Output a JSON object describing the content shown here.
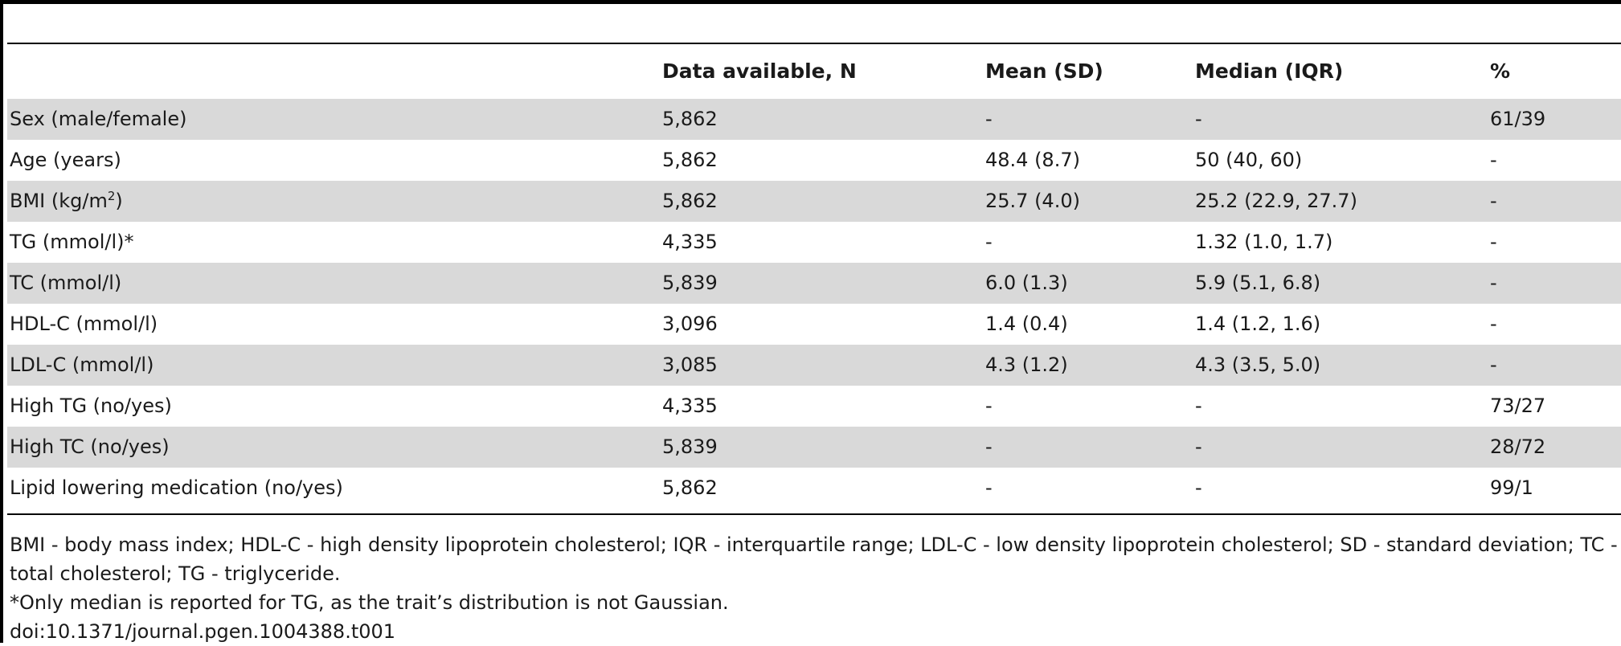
{
  "table": {
    "columns": [
      "",
      "Data available, N",
      "Mean (SD)",
      "Median (IQR)",
      "%"
    ],
    "rows": [
      {
        "variable": "Sex (male/female)",
        "unit_sup": "",
        "variable_suffix": "",
        "n": "5,862",
        "mean_sd": "-",
        "median_iqr": "-",
        "percent": "61/39"
      },
      {
        "variable": "Age (years)",
        "unit_sup": "",
        "variable_suffix": "",
        "n": "5,862",
        "mean_sd": "48.4 (8.7)",
        "median_iqr": "50 (40, 60)",
        "percent": "-"
      },
      {
        "variable": "BMI (kg/m",
        "unit_sup": "2",
        "variable_suffix": ")",
        "n": "5,862",
        "mean_sd": "25.7 (4.0)",
        "median_iqr": "25.2 (22.9, 27.7)",
        "percent": "-"
      },
      {
        "variable": "TG (mmol/l)*",
        "unit_sup": "",
        "variable_suffix": "",
        "n": "4,335",
        "mean_sd": "-",
        "median_iqr": "1.32 (1.0, 1.7)",
        "percent": "-"
      },
      {
        "variable": "TC (mmol/l)",
        "unit_sup": "",
        "variable_suffix": "",
        "n": "5,839",
        "mean_sd": "6.0 (1.3)",
        "median_iqr": "5.9 (5.1, 6.8)",
        "percent": "-"
      },
      {
        "variable": "HDL-C (mmol/l)",
        "unit_sup": "",
        "variable_suffix": "",
        "n": "3,096",
        "mean_sd": "1.4 (0.4)",
        "median_iqr": "1.4 (1.2, 1.6)",
        "percent": "-"
      },
      {
        "variable": "LDL-C (mmol/l)",
        "unit_sup": "",
        "variable_suffix": "",
        "n": "3,085",
        "mean_sd": "4.3 (1.2)",
        "median_iqr": "4.3 (3.5, 5.0)",
        "percent": "-"
      },
      {
        "variable": "High TG (no/yes)",
        "unit_sup": "",
        "variable_suffix": "",
        "n": "4,335",
        "mean_sd": "-",
        "median_iqr": "-",
        "percent": "73/27"
      },
      {
        "variable": "High TC (no/yes)",
        "unit_sup": "",
        "variable_suffix": "",
        "n": "5,839",
        "mean_sd": "-",
        "median_iqr": "-",
        "percent": "28/72"
      },
      {
        "variable": "Lipid lowering medication (no/yes)",
        "unit_sup": "",
        "variable_suffix": "",
        "n": "5,862",
        "mean_sd": "-",
        "median_iqr": "-",
        "percent": "99/1"
      }
    ]
  },
  "footnotes": {
    "abbrev_line1": "BMI - body mass index; HDL-C - high density lipoprotein cholesterol; IQR - interquartile range; LDL-C - low density lipoprotein cholesterol; SD - standard deviation; TC -",
    "abbrev_line2": "total cholesterol; TG - triglyceride.",
    "note": "*Only median is reported for TG, as the trait’s distribution is not Gaussian.",
    "doi": "doi:10.1371/journal.pgen.1004388.t001"
  },
  "colors": {
    "row_shade": "#d9d9d9",
    "rule": "#000000"
  }
}
